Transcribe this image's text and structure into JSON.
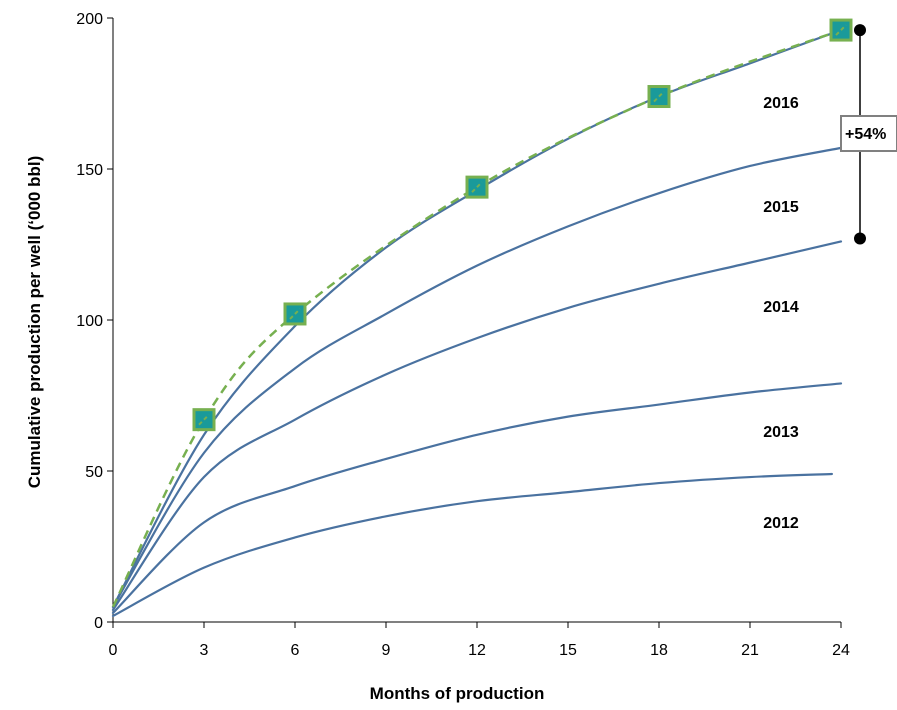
{
  "chart_data": {
    "type": "line",
    "title": "",
    "xlabel": "Months of production",
    "ylabel": "Cumulative production per well (‘000 bbl)",
    "xlim": [
      0,
      24
    ],
    "ylim": [
      0,
      200
    ],
    "x_ticks": [
      "0",
      "3",
      "6",
      "9",
      "12",
      "15",
      "18",
      "21",
      "24"
    ],
    "y_ticks": [
      "0",
      "50",
      "100",
      "150",
      "200"
    ],
    "grid": false,
    "legend": "none",
    "colors": {
      "series_line": "#4a72a0",
      "dashed_line": "#77b050",
      "marker_fill": "#1a9a9a",
      "marker_border": "#77b050",
      "callout_border": "#808080"
    },
    "series": [
      {
        "name": "2012",
        "x": [
          0,
          3,
          6,
          9,
          12,
          15,
          18,
          21,
          23.7
        ],
        "values": [
          2,
          18,
          28,
          35,
          40,
          43,
          46,
          48,
          49
        ]
      },
      {
        "name": "2013",
        "x": [
          0,
          3,
          6,
          9,
          12,
          15,
          18,
          21,
          24
        ],
        "values": [
          3,
          33,
          45,
          54,
          62,
          68,
          72,
          76,
          79
        ]
      },
      {
        "name": "2014",
        "x": [
          0,
          3,
          6,
          9,
          12,
          15,
          18,
          21,
          24
        ],
        "values": [
          4,
          48,
          67,
          82,
          94,
          104,
          112,
          119,
          126
        ]
      },
      {
        "name": "2015",
        "x": [
          0,
          3,
          6,
          9,
          12,
          15,
          18,
          21,
          24
        ],
        "values": [
          5,
          56,
          84,
          102,
          118,
          131,
          142,
          151,
          157
        ]
      },
      {
        "name": "2016",
        "x": [
          0,
          3,
          6,
          9,
          12,
          15,
          18,
          21,
          24
        ],
        "values": [
          5,
          62,
          98,
          124,
          143,
          160,
          174,
          185,
          196
        ]
      }
    ],
    "marker_series": {
      "x": [
        3,
        6,
        12,
        18,
        24
      ],
      "values": [
        67,
        102,
        144,
        174,
        196
      ]
    },
    "annotation": {
      "text": "+54%",
      "from": 127,
      "to": 196
    }
  }
}
